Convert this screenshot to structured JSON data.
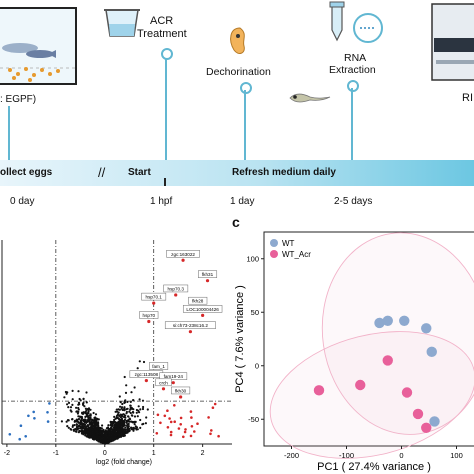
{
  "panel_a": {
    "tank_label": ": EGPF)",
    "steps": {
      "acr_line1": "ACR",
      "acr_line2": "Treatment",
      "dechorination": "Dechorination",
      "rna_line1": "RNA",
      "rna_line2": "Extraction",
      "rn_cut": "RI"
    },
    "bar": {
      "collect": "ollect eggs",
      "start": "Start",
      "refresh": "Refresh medium daily",
      "break_mark": "//"
    },
    "days": {
      "d0": "0 day",
      "hpf": "1 hpf",
      "d1": "1 day",
      "d25": "2-5 days"
    },
    "colors": {
      "bar_light": "#e8f5fb",
      "bar_dark": "#6cc7e2",
      "pin": "#61b7d2"
    }
  },
  "panel_b": {
    "xlabel": "log2 (fold change)",
    "x_ticks": [
      "-2",
      "-1",
      "0",
      "1",
      "2"
    ],
    "x_tick_values": [
      -2,
      -1,
      0,
      1,
      2
    ],
    "gene_labels": [
      {
        "text": "zgc:163022",
        "x": 1.6,
        "y": 0.93
      },
      {
        "text": "fkh31",
        "x": 2.1,
        "y": 0.83
      },
      {
        "text": "hsp70.3",
        "x": 1.45,
        "y": 0.76
      },
      {
        "text": "hsp70.1",
        "x": 1.0,
        "y": 0.72
      },
      {
        "text": "fkh28",
        "x": 1.9,
        "y": 0.7
      },
      {
        "text": "LOC100004426",
        "x": 2.0,
        "y": 0.66
      },
      {
        "text": "hsp70",
        "x": 0.9,
        "y": 0.63
      },
      {
        "text": "si:ch73-238c16.2",
        "x": 1.75,
        "y": 0.58
      },
      {
        "text": "fam_1",
        "x": 1.1,
        "y": 0.38
      },
      {
        "text": "zgc:113508",
        "x": 0.85,
        "y": 0.34
      },
      {
        "text": "fam19-24",
        "x": 1.4,
        "y": 0.33
      },
      {
        "text": "crch",
        "x": 1.2,
        "y": 0.3
      },
      {
        "text": "fkh30",
        "x": 1.55,
        "y": 0.26
      }
    ],
    "colors": {
      "up": "#d62728",
      "down": "#2c6fbf",
      "ns": "#111111"
    }
  },
  "panel_c": {
    "letter": "c",
    "legend": [
      {
        "label": "WT",
        "color": "#8da9cf"
      },
      {
        "label": "WT_Acr",
        "color": "#e8609a"
      }
    ],
    "xlabel": "PC1 ( 27.4% variance )",
    "ylabel": "PC4 ( 7.6% variance )",
    "x_ticks": [
      "-200",
      "-100",
      "0",
      "100"
    ],
    "y_ticks": [
      "100",
      "50",
      "0",
      "-50"
    ],
    "x_tick_values": [
      -200,
      -100,
      0,
      100
    ],
    "y_tick_values": [
      100,
      50,
      0,
      -50
    ]
  },
  "chart_data": [
    {
      "type": "scatter",
      "title": "",
      "xlabel": "log2 (fold change)",
      "ylabel": "",
      "xlim": [
        -2.1,
        2.6
      ],
      "ylim": [
        0,
        1
      ],
      "thresholds": {
        "x": [
          -1,
          1
        ],
        "y": 0.21
      }
    },
    {
      "type": "scatter",
      "title": "",
      "xlabel": "PC1 ( 27.4% variance )",
      "ylabel": "PC4 ( 7.6% variance )",
      "xlim": [
        -250,
        150
      ],
      "ylim": [
        -75,
        125
      ],
      "grid": false,
      "legend": "top-left",
      "series": [
        {
          "name": "WT",
          "x": [
            -40,
            -25,
            5,
            45,
            55,
            60
          ],
          "y": [
            40,
            42,
            42,
            35,
            13,
            -52
          ]
        },
        {
          "name": "WT_Acr",
          "x": [
            -150,
            -75,
            -25,
            10,
            30,
            45
          ],
          "y": [
            -23,
            -18,
            5,
            -25,
            -45,
            -58
          ]
        }
      ]
    }
  ]
}
